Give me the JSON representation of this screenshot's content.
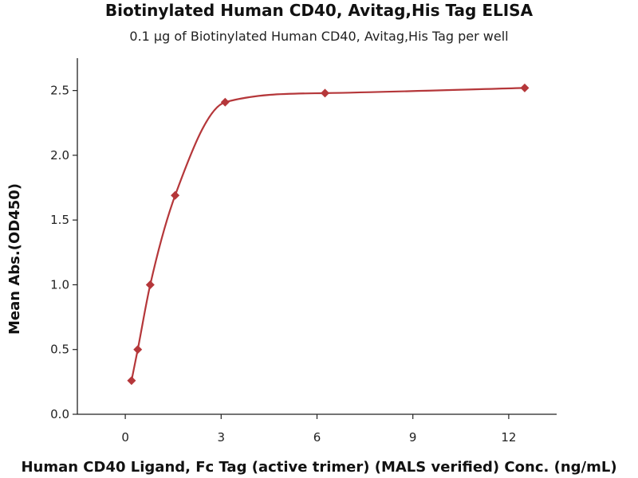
{
  "chart_data": {
    "type": "scatter",
    "title": "Biotinylated Human CD40, Avitag,His Tag ELISA",
    "subtitle": "0.1 µg of Biotinylated Human CD40, Avitag,His Tag per well",
    "xlabel": "Human CD40 Ligand, Fc Tag (active trimer) (MALS verified) Conc. (ng/mL)",
    "ylabel": "Mean Abs.(OD450)",
    "xlim": [
      -1.5,
      13.5
    ],
    "ylim": [
      0,
      2.75
    ],
    "xticks": [
      0,
      3,
      6,
      9,
      12
    ],
    "yticks": [
      0.0,
      0.5,
      1.0,
      1.5,
      2.0,
      2.5
    ],
    "xtick_labels": [
      "0",
      "3",
      "6",
      "9",
      "12"
    ],
    "ytick_labels": [
      "0.0",
      "0.5",
      "1.0",
      "1.5",
      "2.0",
      "2.5"
    ],
    "grid": false,
    "legend": "none",
    "color": "#b5373a",
    "series": [
      {
        "x": [
          0.195,
          0.39,
          0.78,
          1.56,
          3.125,
          6.25,
          12.5
        ],
        "y": [
          0.26,
          0.5,
          1.0,
          1.69,
          2.41,
          2.48,
          2.52
        ],
        "marker": "diamond",
        "fit_curve": true
      }
    ]
  }
}
